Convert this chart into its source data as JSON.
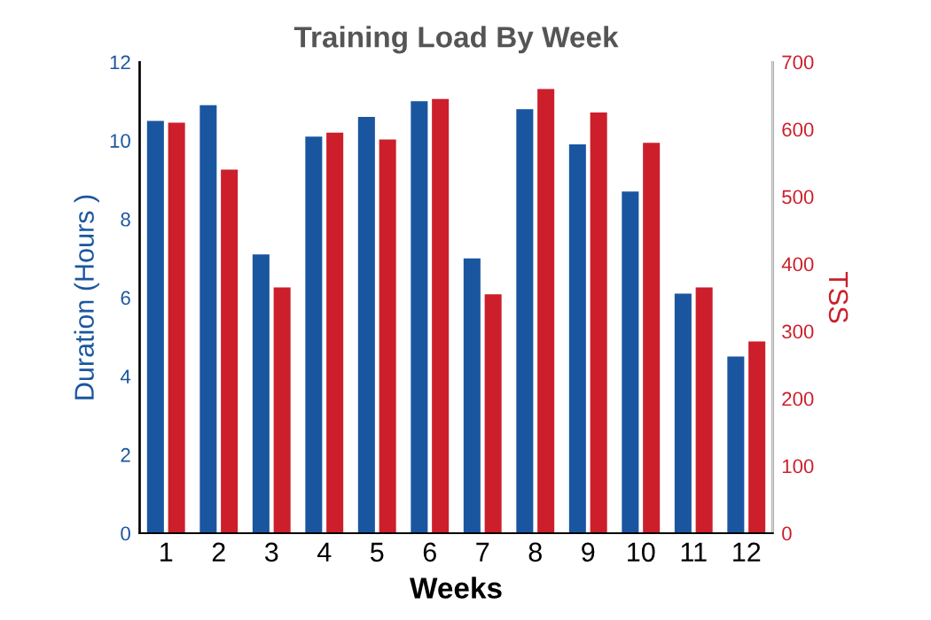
{
  "chart_data": {
    "type": "bar",
    "title": "Training Load By Week",
    "xlabel": "Weeks",
    "ylabel": "Duration (Hours )",
    "y2label": "TSS",
    "categories": [
      "1",
      "2",
      "3",
      "4",
      "5",
      "6",
      "7",
      "8",
      "9",
      "10",
      "11",
      "12"
    ],
    "series": [
      {
        "color": "#1a56a0",
        "values": [
          10.5,
          10.9,
          7.1,
          10.1,
          10.6,
          11.0,
          7.0,
          10.8,
          9.9,
          8.7,
          6.1,
          4.5
        ]
      },
      {
        "color": "#cc1f2b",
        "axis": "y2",
        "values": [
          610,
          540,
          365,
          595,
          585,
          645,
          355,
          660,
          625,
          580,
          365,
          285
        ]
      }
    ],
    "ylim": [
      0,
      12
    ],
    "yticks": [
      0,
      2,
      4,
      6,
      8,
      10,
      12
    ],
    "y2lim": [
      0,
      700
    ],
    "y2ticks": [
      0,
      100,
      200,
      300,
      400,
      500,
      600,
      700
    ],
    "grid": false,
    "legend": false
  }
}
